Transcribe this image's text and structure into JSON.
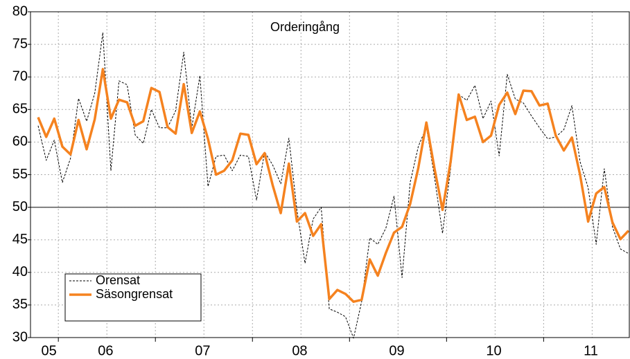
{
  "chart_data": {
    "type": "line",
    "title": "Orderingång",
    "categories": [
      null,
      "05",
      null,
      null,
      null,
      null,
      null,
      null,
      "06",
      null,
      null,
      null,
      null,
      null,
      null,
      null,
      null,
      null,
      null,
      null,
      "07",
      null,
      null,
      null,
      null,
      null,
      null,
      null,
      null,
      null,
      null,
      null,
      "08",
      null,
      null,
      null,
      null,
      null,
      null,
      null,
      null,
      null,
      null,
      null,
      "09",
      null,
      null,
      null,
      null,
      null,
      null,
      null,
      null,
      null,
      null,
      null,
      "10",
      null,
      null,
      null,
      null,
      null,
      null,
      null,
      null,
      null,
      null,
      null,
      "11",
      null,
      null,
      null,
      null,
      null
    ],
    "series": [
      {
        "name": "Orensat",
        "color": "#000000",
        "dash": true,
        "values": [
          62.5,
          57.2,
          60.3,
          53.8,
          57.5,
          66.7,
          63.2,
          67.5,
          76.8,
          55.6,
          69.4,
          68.8,
          61.1,
          59.8,
          65.0,
          62.2,
          62.2,
          64.8,
          73.8,
          62.2,
          70.2,
          53.2,
          57.8,
          58.0,
          55.6,
          58.0,
          57.8,
          51.1,
          58.5,
          56.5,
          53.6,
          60.6,
          49.6,
          41.4,
          48.2,
          50.0,
          34.4,
          33.9,
          33.2,
          29.9,
          35.5,
          45.3,
          44.3,
          46.8,
          51.7,
          39.2,
          53.8,
          59.3,
          62.3,
          54.7,
          46.0,
          56.0,
          67.3,
          66.4,
          68.7,
          63.6,
          66.3,
          57.9,
          70.4,
          66.6,
          66.0,
          64.0,
          62.2,
          60.5,
          60.8,
          61.9,
          65.6,
          57.0,
          53.0,
          44.3,
          55.9,
          47.0,
          43.6,
          42.9
        ]
      },
      {
        "name": "Säsongrensat",
        "color": "#f5821f",
        "dash": false,
        "values": [
          63.8,
          60.8,
          63.6,
          59.3,
          58.1,
          63.4,
          58.9,
          63.5,
          71.2,
          63.6,
          66.5,
          66.1,
          62.5,
          63.2,
          68.3,
          67.7,
          62.3,
          61.3,
          68.9,
          61.4,
          64.7,
          60.5,
          55.0,
          55.6,
          57.2,
          61.3,
          61.1,
          56.6,
          58.3,
          53.4,
          49.1,
          56.7,
          47.8,
          49.1,
          45.6,
          47.4,
          35.9,
          37.3,
          36.7,
          35.5,
          35.8,
          42.0,
          39.5,
          43.0,
          46.1,
          47.0,
          50.5,
          56.0,
          63.0,
          56.0,
          49.6,
          57.0,
          67.3,
          63.4,
          63.9,
          60.0,
          61.0,
          65.7,
          67.6,
          64.3,
          67.9,
          67.8,
          65.6,
          65.9,
          61.0,
          58.7,
          60.7,
          55.0,
          47.8,
          52.1,
          53.1,
          47.7,
          45.1,
          46.4
        ]
      }
    ],
    "ylim": [
      30,
      80
    ],
    "yticks": [
      30,
      35,
      40,
      45,
      50,
      55,
      60,
      65,
      70,
      75,
      80
    ],
    "hline": 50,
    "grid": true
  }
}
